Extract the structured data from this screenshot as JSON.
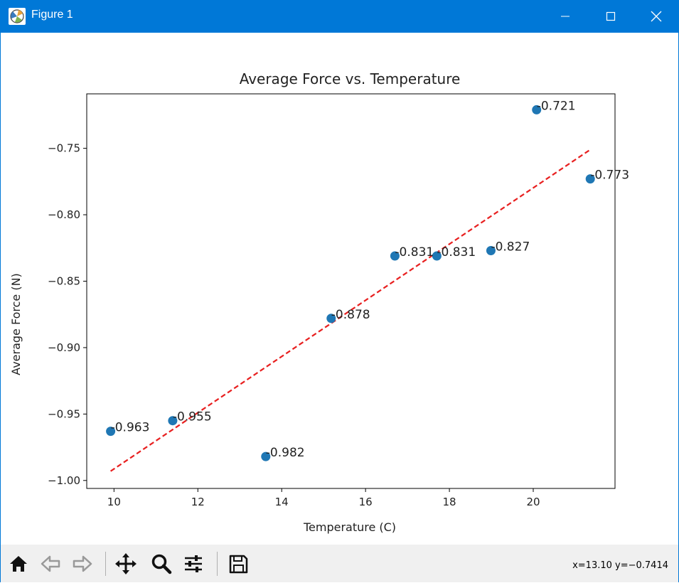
{
  "window": {
    "title": "Figure 1",
    "icon": "matplotlib-figure-icon",
    "controls": [
      "minimize-icon",
      "maximize-icon",
      "close-icon"
    ]
  },
  "toolbar": {
    "buttons": [
      "home-icon",
      "back-arrow-icon",
      "forward-arrow-icon",
      "pan-icon",
      "zoom-icon",
      "configure-subplots-icon",
      "save-icon"
    ],
    "coordinates": "x=13.10 y=−0.7414"
  },
  "chart_data": {
    "type": "scatter",
    "title": "Average Force vs. Temperature",
    "xlabel": "Temperature (C)",
    "ylabel": "Average Force (N)",
    "xlim": [
      9.35,
      21.95
    ],
    "ylim": [
      -1.006,
      -0.709
    ],
    "xticks": [
      10,
      12,
      14,
      16,
      18,
      20
    ],
    "xtick_labels": [
      "10",
      "12",
      "14",
      "16",
      "18",
      "20"
    ],
    "yticks": [
      -0.75,
      -0.8,
      -0.85,
      -0.9,
      -0.95,
      -1.0
    ],
    "ytick_labels": [
      "−0.75",
      "−0.80",
      "−0.85",
      "−0.90",
      "−0.95",
      "−1.00"
    ],
    "grid": false,
    "points": [
      {
        "x": 9.92,
        "y": -0.963,
        "label": "-0.963"
      },
      {
        "x": 11.4,
        "y": -0.955,
        "label": "-0.955"
      },
      {
        "x": 13.62,
        "y": -0.982,
        "label": "-0.982"
      },
      {
        "x": 15.18,
        "y": -0.878,
        "label": "-0.878"
      },
      {
        "x": 16.7,
        "y": -0.831,
        "label": "-0.831"
      },
      {
        "x": 17.7,
        "y": -0.831,
        "label": "-0.831"
      },
      {
        "x": 18.99,
        "y": -0.827,
        "label": "-0.827"
      },
      {
        "x": 20.08,
        "y": -0.721,
        "label": "-0.721"
      },
      {
        "x": 21.36,
        "y": -0.773,
        "label": "-0.773"
      }
    ],
    "trendline": {
      "style": "dashed",
      "color": "#e82020",
      "x": [
        9.92,
        21.36
      ],
      "y": [
        -0.993,
        -0.751
      ]
    },
    "point_color": "#1f77b4"
  }
}
